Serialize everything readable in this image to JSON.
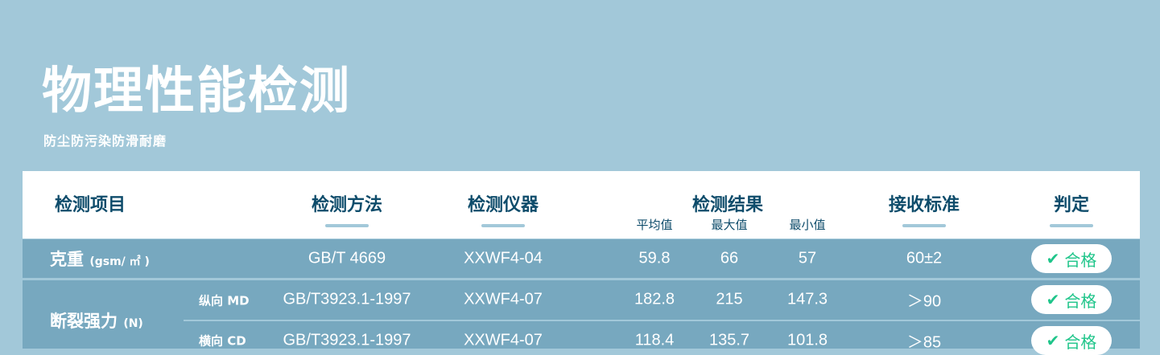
{
  "title": "物理性能检测",
  "subtitle": "防尘防污染防滑耐磨",
  "headers": {
    "item": "检测项目",
    "method": "检测方法",
    "instrument": "检测仪器",
    "result": "检测结果",
    "avg": "平均值",
    "max": "最大值",
    "min": "最小值",
    "standard": "接收标准",
    "judgement": "判定"
  },
  "rows": [
    {
      "item": "克重",
      "unit": "(gsm/ ㎡ )",
      "direction": "",
      "method": "GB/T 4669",
      "instrument": "XXWF4-04",
      "avg": "59.8",
      "max": "66",
      "min": "57",
      "standard": "60±2",
      "judgement": "合格"
    },
    {
      "item": "断裂强力",
      "unit": "(N)",
      "direction": "纵向 MD",
      "method": "GB/T3923.1-1997",
      "instrument": "XXWF4-07",
      "avg": "182.8",
      "max": "215",
      "min": "147.3",
      "standard": "＞90",
      "judgement": "合格"
    },
    {
      "item": "",
      "unit": "",
      "direction": "横向 CD",
      "method": "GB/T3923.1-1997",
      "instrument": "XXWF4-07",
      "avg": "118.4",
      "max": "135.7",
      "min": "101.8",
      "standard": "＞85",
      "judgement": "合格"
    }
  ],
  "colors": {
    "background": "#a2c8d9",
    "row": "#77a8bf",
    "header_text": "#0e4c6b",
    "pass": "#1fc58a"
  }
}
